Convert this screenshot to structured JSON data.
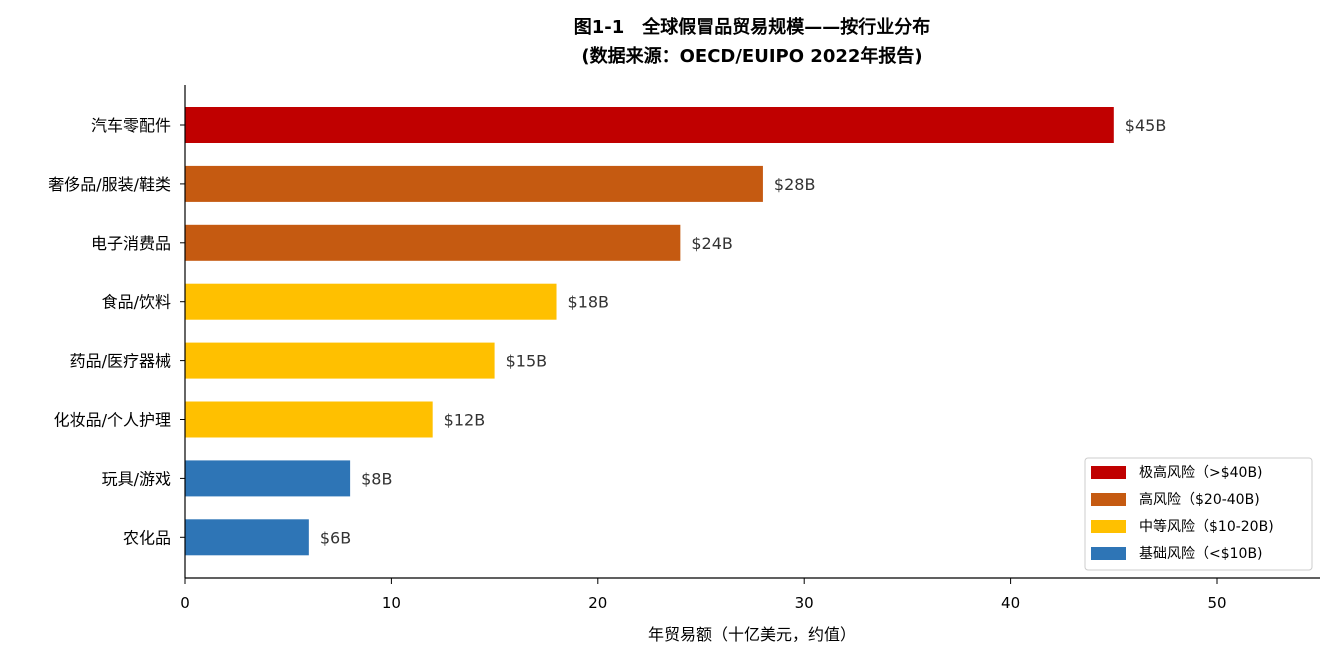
{
  "chart_data": {
    "type": "bar",
    "orientation": "horizontal",
    "title": "图1-1　全球假冒品贸易规模——按行业分布",
    "subtitle": "(数据来源：OECD/EUIPO 2022年报告)",
    "xlabel": "年贸易额（十亿美元，约值）",
    "ylabel": "",
    "xlim": [
      0,
      55
    ],
    "xticks": [
      0,
      10,
      20,
      30,
      40,
      50
    ],
    "grid": false,
    "legend_position": "bottom-right",
    "categories": [
      "汽车零配件",
      "奢侈品/服装/鞋类",
      "电子消费品",
      "食品/饮料",
      "药品/医疗器械",
      "化妆品/个人护理",
      "玩具/游戏",
      "农化品"
    ],
    "values": [
      45,
      28,
      24,
      18,
      15,
      12,
      8,
      6
    ],
    "data_labels": [
      "$45B",
      "$28B",
      "$24B",
      "$18B",
      "$15B",
      "$12B",
      "$8B",
      "$6B"
    ],
    "bar_tiers": [
      0,
      1,
      1,
      2,
      2,
      2,
      3,
      3
    ],
    "legend": [
      {
        "label": "极高风险（>$40B)",
        "color": "#c00000"
      },
      {
        "label": "高风险（$20-40B)",
        "color": "#c55a11"
      },
      {
        "label": "中等风险（$10-20B)",
        "color": "#ffc000"
      },
      {
        "label": "基础风险（<$10B)",
        "color": "#2e75b6"
      }
    ]
  }
}
